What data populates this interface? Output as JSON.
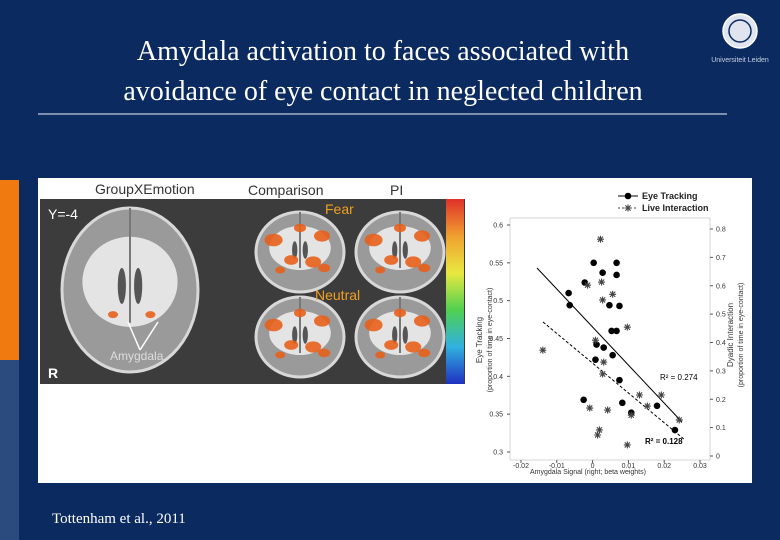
{
  "slide": {
    "title_lines": [
      "Amydala activation to faces associated with",
      "avoidance of eye contact in neglected children"
    ],
    "logo_text": "Universiteit Leiden",
    "citation": "Tottenham et al., 2011"
  },
  "figure": {
    "panel_labels": [
      "GroupXEmotion",
      "Comparison",
      "PI"
    ],
    "slice_label": "Y=-4",
    "side_label": "R",
    "region_label": "Amygdala",
    "condition_labels": [
      "Fear",
      "Neutral"
    ]
  },
  "chart_data": {
    "type": "scatter",
    "x_label": "Amygdala Signal (right; beta weights)",
    "y_label": "Eye Tracking",
    "y_sublabel": "(proportion of time in eye-contact)",
    "y2_label": "Dyadic Interaction",
    "y2_sublabel": "(proportion of time in eye-contact)",
    "annotations": [
      "R² = 0.274",
      "R² = 0.128"
    ],
    "xlim": [
      -0.02,
      0.03
    ],
    "xticks": [
      -0.02,
      -0.01,
      0,
      0.01,
      0.02,
      0.03
    ],
    "ylim": [
      0.3,
      0.6
    ],
    "yticks": [
      0.3,
      0.35,
      0.4,
      0.45,
      0.5,
      0.55,
      0.6
    ],
    "y2lim": [
      0,
      0.8
    ],
    "y2ticks": [
      0,
      0.1,
      0.2,
      0.3,
      0.4,
      0.5,
      0.6,
      0.7,
      0.8
    ],
    "series": [
      {
        "name": "Eye Tracking",
        "color": "#000000",
        "marker": "circle",
        "x": [
          -0.0067,
          -0.0022,
          -0.0064,
          0.0003,
          0.0028,
          0.0067,
          0.0067,
          0.0047,
          0.0075,
          0.0053,
          0.0067,
          0.0011,
          0.0031,
          0.0056,
          0.0008,
          0.0075,
          -0.0025,
          0.0083,
          0.0108,
          0.018,
          0.023
        ],
        "values": [
          0.51,
          0.524,
          0.494,
          0.55,
          0.537,
          0.55,
          0.534,
          0.494,
          0.493,
          0.46,
          0.46,
          0.442,
          0.438,
          0.428,
          0.422,
          0.395,
          0.369,
          0.365,
          0.352,
          0.361,
          0.329
        ]
      },
      {
        "name": "Live Interaction",
        "color": "#444444",
        "marker": "asterisk",
        "axis": "y2",
        "x": [
          -0.0139,
          0.0022,
          -0.0014,
          0.0025,
          0.0056,
          0.0028,
          0.0097,
          0.0008,
          0.0031,
          0.0028,
          -0.0008,
          0.0042,
          0.0108,
          0.0131,
          0.0153,
          0.0192,
          0.0019,
          0.0097,
          0.0242,
          0.0014
        ],
        "values": [
          0.373,
          0.764,
          0.602,
          0.613,
          0.57,
          0.55,
          0.454,
          0.408,
          0.331,
          0.289,
          0.169,
          0.162,
          0.144,
          0.215,
          0.176,
          0.215,
          0.092,
          0.039,
          0.127,
          0.074
        ]
      }
    ]
  }
}
